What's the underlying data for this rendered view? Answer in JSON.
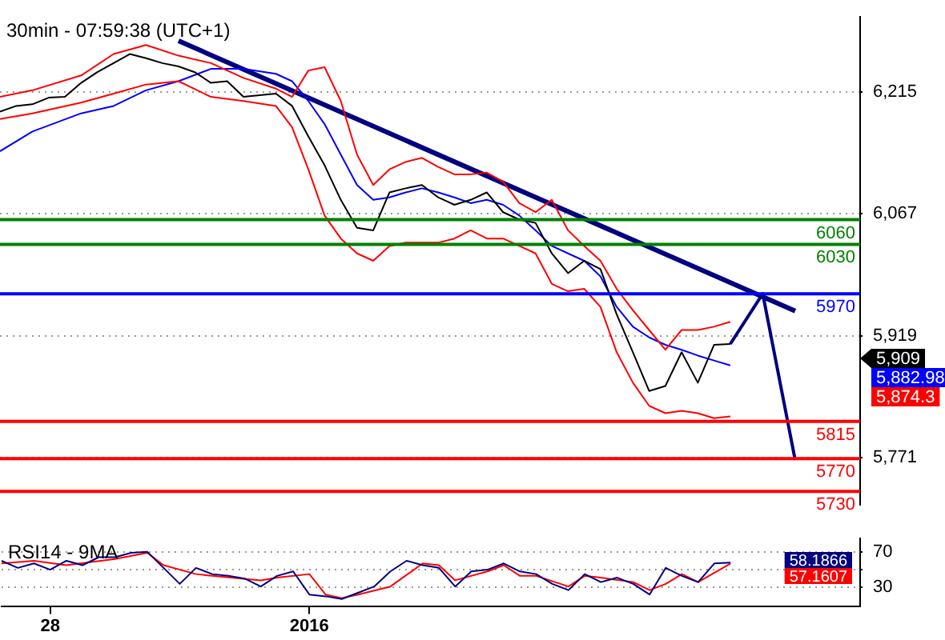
{
  "chart_data": [
    {
      "type": "line",
      "title": "30min - 07:59:38 (UTC+1)",
      "categories": [
        null,
        null,
        null,
        "28",
        null,
        null,
        null,
        null,
        null,
        null,
        null,
        null,
        null,
        null,
        null,
        null,
        null,
        null,
        null,
        "2016",
        null,
        null,
        null,
        null,
        null,
        null,
        null,
        null,
        null,
        null,
        null,
        null,
        null,
        null,
        null,
        null,
        null,
        null,
        null,
        null,
        null,
        null,
        null,
        null,
        null,
        null,
        null,
        null,
        null,
        null,
        null,
        null,
        null,
        null
      ],
      "ylim": [
        5714,
        6306
      ],
      "yticks": [
        {
          "value": 6215,
          "label": "6,215"
        },
        {
          "value": 6067,
          "label": "6,067"
        },
        {
          "value": 5919,
          "label": "5,919"
        },
        {
          "value": 5771,
          "label": "5,771"
        }
      ],
      "grid": "y",
      "tick_labels": "y",
      "series": [
        {
          "color": "#000000",
          "values": [
            6191,
            6198,
            6200,
            6208,
            6209,
            6226,
            6239,
            6250,
            6261,
            6256,
            6250,
            6246,
            6239,
            6226,
            6228,
            6209,
            6211,
            6213,
            6198,
            6161,
            6126,
            6084,
            6050,
            6047,
            6093,
            6098,
            6102,
            6087,
            6078,
            6084,
            6093,
            6069,
            6060,
            6056,
            6019,
            5995,
            6010,
            6000,
            5945,
            5899,
            5852,
            5858,
            5899,
            5862,
            5908,
            5909,
            null,
            null,
            null,
            null,
            null,
            null,
            null,
            null
          ]
        },
        {
          "color": "#ff0000",
          "values": [
            6209,
            null,
            6217,
            null,
            null,
            6235,
            null,
            6261,
            null,
            6272,
            null,
            6259,
            null,
            6250,
            null,
            6232,
            null,
            6219,
            6209,
            6241,
            6245,
            6204,
            6139,
            6102,
            6121,
            6130,
            6135,
            6124,
            6115,
            6115,
            6117,
            6106,
            6080,
            6069,
            6084,
            6047,
            6028,
            6010,
            5976,
            5950,
            5926,
            5902,
            5926,
            5926,
            5930,
            5936,
            null,
            null,
            null,
            null,
            null,
            null,
            null,
            null
          ]
        },
        {
          "color": "#ff0000",
          "values": [
            6182,
            null,
            6189,
            null,
            null,
            6202,
            null,
            6213,
            null,
            6224,
            null,
            6228,
            null,
            6209,
            null,
            6204,
            null,
            6198,
            6172,
            6121,
            6065,
            6037,
            6019,
            6010,
            6028,
            6032,
            6032,
            6032,
            6037,
            6047,
            6037,
            6037,
            6028,
            6019,
            5982,
            5973,
            5976,
            5954,
            5899,
            5862,
            5834,
            5825,
            5828,
            5825,
            5819,
            5821,
            null,
            null,
            null,
            null,
            null,
            null,
            null,
            null
          ]
        },
        {
          "color": "#0000ff",
          "values": [
            6143,
            null,
            6167,
            null,
            null,
            6189,
            null,
            6198,
            null,
            6217,
            null,
            6228,
            null,
            6243,
            null,
            6243,
            null,
            6237,
            6228,
            6204,
            6176,
            6139,
            6102,
            6084,
            6087,
            6093,
            6098,
            6093,
            6087,
            6080,
            6084,
            6078,
            6065,
            6047,
            6028,
            6019,
            6010,
            5991,
            5954,
            5930,
            5917,
            5908,
            5902,
            5895,
            5889,
            5883,
            null,
            null,
            null,
            null,
            null,
            null,
            null,
            null
          ]
        },
        {
          "color": "#000080",
          "values": [
            null,
            null,
            null,
            null,
            null,
            null,
            null,
            null,
            null,
            null,
            null,
            6277,
            null,
            null,
            null,
            null,
            null,
            null,
            null,
            null,
            null,
            null,
            null,
            null,
            null,
            null,
            null,
            null,
            null,
            null,
            null,
            null,
            null,
            null,
            null,
            null,
            null,
            null,
            null,
            null,
            null,
            null,
            null,
            null,
            null,
            null,
            null,
            null,
            null,
            5949,
            null,
            null,
            null,
            null
          ]
        },
        {
          "color": "#000080",
          "values": [
            null,
            null,
            null,
            null,
            null,
            null,
            null,
            null,
            null,
            null,
            null,
            null,
            null,
            null,
            null,
            null,
            null,
            null,
            null,
            null,
            null,
            null,
            null,
            null,
            null,
            null,
            null,
            null,
            null,
            null,
            null,
            null,
            null,
            null,
            null,
            null,
            null,
            null,
            null,
            null,
            null,
            null,
            null,
            null,
            null,
            5909,
            null,
            5970,
            null,
            5768,
            null,
            null,
            null,
            null
          ]
        }
      ],
      "ref_lines": [
        {
          "axis": "y",
          "value": 6060,
          "label": "6060",
          "color": "#008000"
        },
        {
          "axis": "y",
          "value": 6030,
          "label": "6030",
          "color": "#008000"
        },
        {
          "axis": "y",
          "value": 5970,
          "label": "5970",
          "color": "#0000ff"
        },
        {
          "axis": "y",
          "value": 5815,
          "label": "5815",
          "color": "#ff0000"
        },
        {
          "axis": "y",
          "value": 5770,
          "label": "5770",
          "color": "#ff0000"
        },
        {
          "axis": "y",
          "value": 5730,
          "label": "5730",
          "color": "#ff0000"
        }
      ],
      "annotations": [
        "5,909",
        "5,882.98",
        "5,874.3"
      ]
    },
    {
      "type": "line",
      "title": "RSI14 - 9MA",
      "categories": [
        null,
        null,
        null,
        "28",
        null,
        null,
        null,
        null,
        null,
        null,
        null,
        null,
        null,
        null,
        null,
        null,
        null,
        null,
        null,
        "2016",
        null,
        null,
        null,
        null,
        null,
        null,
        null,
        null,
        null,
        null,
        null,
        null,
        null,
        null,
        null,
        null,
        null,
        null,
        null,
        null,
        null,
        null,
        null,
        null,
        null,
        null,
        null,
        null,
        null,
        null,
        null,
        null,
        null,
        null
      ],
      "ylim": [
        9,
        85
      ],
      "yticks": [
        70,
        {
          "value": 50,
          "label": null
        },
        30
      ],
      "grid": "y",
      "series": [
        {
          "color": "#000080",
          "values": [
            60,
            52,
            57,
            50,
            60,
            55,
            64,
            64,
            69,
            70,
            52,
            34,
            52,
            45,
            43,
            40,
            31,
            43,
            48,
            22,
            20,
            17,
            24,
            31,
            48,
            60,
            55,
            52,
            31,
            48,
            50,
            57,
            48,
            45,
            34,
            27,
            45,
            36,
            41,
            34,
            22,
            52,
            43,
            36,
            57,
            58,
            null,
            null,
            null,
            null,
            null,
            null,
            null,
            null
          ]
        },
        {
          "color": "#ff0000",
          "values": [
            57,
            null,
            60,
            null,
            55,
            null,
            null,
            62,
            null,
            69,
            55,
            null,
            45,
            43,
            null,
            null,
            38,
            41,
            null,
            45,
            22,
            18,
            22,
            null,
            31,
            null,
            57,
            55,
            38,
            null,
            48,
            55,
            43,
            43,
            null,
            31,
            43,
            41,
            null,
            36,
            27,
            34,
            45,
            36,
            null,
            57,
            null,
            null,
            null,
            null,
            null,
            null,
            null,
            null
          ]
        }
      ],
      "annotations": [
        "58.1866",
        "57.1607"
      ]
    }
  ]
}
